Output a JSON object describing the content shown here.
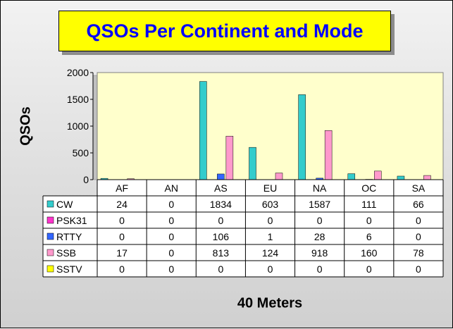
{
  "chart_data": {
    "type": "bar",
    "title": "QSOs Per Continent and Mode",
    "xlabel": "40 Meters",
    "ylabel": "QSOs",
    "categories": [
      "AF",
      "AN",
      "AS",
      "EU",
      "NA",
      "OC",
      "SA"
    ],
    "ylim": [
      0,
      2000
    ],
    "yticks": [
      0,
      500,
      1000,
      1500,
      2000
    ],
    "series": [
      {
        "name": "CW",
        "color": "#33cccc",
        "values": [
          24,
          0,
          1834,
          603,
          1587,
          111,
          66
        ]
      },
      {
        "name": "PSK31",
        "color": "#ff33cc",
        "values": [
          0,
          0,
          0,
          0,
          0,
          0,
          0
        ]
      },
      {
        "name": "RTTY",
        "color": "#3366ff",
        "values": [
          0,
          0,
          106,
          1,
          28,
          6,
          0
        ]
      },
      {
        "name": "SSB",
        "color": "#ff99cc",
        "values": [
          17,
          0,
          813,
          124,
          918,
          160,
          78
        ]
      },
      {
        "name": "SSTV",
        "color": "#ffff00",
        "values": [
          0,
          0,
          0,
          0,
          0,
          0,
          0
        ]
      }
    ],
    "legend": "data-table-left",
    "plot_background": "#ffffcc"
  }
}
